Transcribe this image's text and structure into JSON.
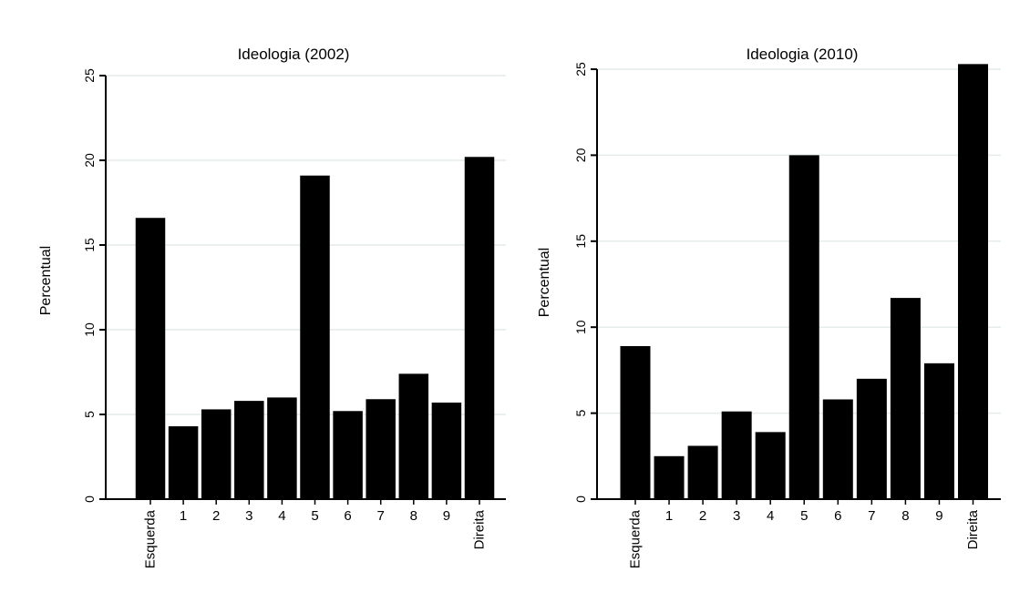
{
  "chart_data": [
    {
      "type": "bar",
      "title": "Ideologia (2002)",
      "xlabel": "",
      "ylabel": "Percentual",
      "categories": [
        "Esquerda",
        "1",
        "2",
        "3",
        "4",
        "5",
        "6",
        "7",
        "8",
        "9",
        "Direita"
      ],
      "values": [
        16.6,
        4.3,
        5.3,
        5.8,
        6.0,
        19.1,
        5.2,
        5.9,
        7.4,
        5.7,
        20.2
      ],
      "yticks": [
        "0",
        "5",
        "10",
        "15",
        "20",
        "25"
      ],
      "ylim": [
        0,
        25
      ],
      "grid": true,
      "bar_color": "#000000",
      "grid_color": "#e4ecec"
    },
    {
      "type": "bar",
      "title": "Ideologia (2010)",
      "xlabel": "",
      "ylabel": "Percentual",
      "categories": [
        "Esquerda",
        "1",
        "2",
        "3",
        "4",
        "5",
        "6",
        "7",
        "8",
        "9",
        "Direita"
      ],
      "values": [
        8.9,
        2.5,
        3.1,
        5.1,
        3.9,
        20.0,
        5.8,
        7.0,
        11.7,
        7.9,
        25.3
      ],
      "yticks": [
        "0",
        "5",
        "10",
        "15",
        "20",
        "25"
      ],
      "ylim": [
        0,
        25
      ],
      "grid": true,
      "bar_color": "#000000",
      "grid_color": "#e4ecec"
    }
  ]
}
